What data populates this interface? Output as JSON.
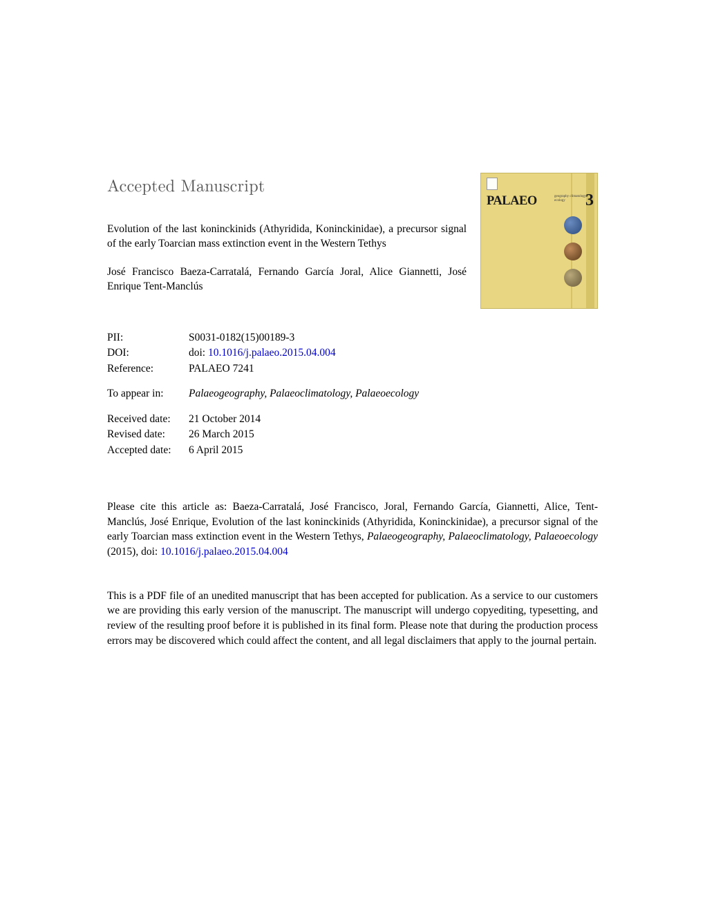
{
  "header": {
    "accepted_label": "Accepted Manuscript"
  },
  "article": {
    "title": "Evolution of the last koninckinids (Athyridida, Koninckinidae), a precursor signal of the early Toarcian mass extinction event in the Western Tethys",
    "authors": "José Francisco Baeza-Carratalá, Fernando García Joral, Alice Giannetti, José Enrique Tent-Manclús"
  },
  "meta": {
    "pii_label": "PII:",
    "pii_value": "S0031-0182(15)00189-3",
    "doi_label": "DOI:",
    "doi_prefix": "doi: ",
    "doi_link_text": "10.1016/j.palaeo.2015.04.004",
    "ref_label": "Reference:",
    "ref_value": "PALAEO 7241",
    "appear_label": "To appear in:",
    "appear_value": "Palaeogeography, Palaeoclimatology, Palaeoecology",
    "received_label": "Received date:",
    "received_value": "21 October 2014",
    "revised_label": "Revised date:",
    "revised_value": "26 March 2015",
    "accepted_label": "Accepted date:",
    "accepted_value": "6 April 2015"
  },
  "citation": {
    "text_before": "Please cite this article as: Baeza-Carratalá, José Francisco, Joral, Fernando García, Giannetti, Alice, Tent-Manclús, José Enrique, Evolution of the last koninckinids (Athyridida, Koninckinidae), a precursor signal of the early Toarcian mass extinction event in the Western Tethys, ",
    "journal_italic": "Palaeogeography, Palaeoclimatology, Palaeoecology",
    "text_after": " (2015),  doi: ",
    "doi_link_text": "10.1016/j.palaeo.2015.04.004"
  },
  "disclaimer": "This is a PDF file of an unedited manuscript that has been accepted for publication. As a service to our customers we are providing this early version of the manuscript. The manuscript will undergo copyediting, typesetting, and review of the resulting proof before it is published in its final form. Please note that during the production process errors may be discovered which could affect the content, and all legal disclaimers that apply to the journal pertain.",
  "cover": {
    "palaeo_text": "PALAEO",
    "sub_lines": "geography\nclimatology\necology",
    "three": "3",
    "background_color": "#e8d682",
    "stripe_color": "#d6c368",
    "globe_colors": [
      "#2b4a7c",
      "#5a3b1a",
      "#6a5a3a"
    ]
  }
}
